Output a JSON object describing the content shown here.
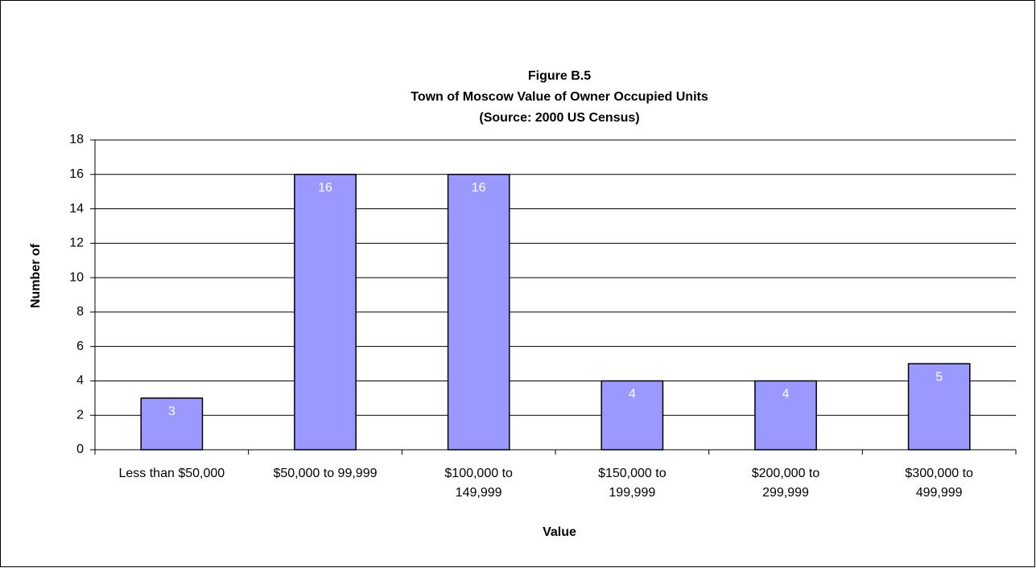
{
  "chart_data": {
    "type": "bar",
    "title": "Figure B.5",
    "subtitle": [
      "Town of Moscow Value of Owner Occupied Units",
      "(Source: 2000 US Census)"
    ],
    "x_label": "Value",
    "y_label": "Number of",
    "categories": [
      "Less than $50,000",
      "$50,000 to 99,999",
      "$100,000 to 149,999",
      "$150,000 to 199,999",
      "$200,000 to 299,999",
      "$300,000 to 499,999"
    ],
    "values": [
      3,
      16,
      16,
      4,
      4,
      5
    ],
    "color": "#9999ff",
    "ylim": [
      0,
      18
    ],
    "yticks": [
      0,
      2,
      4,
      6,
      8,
      10,
      12,
      14,
      16,
      18
    ],
    "grid": true
  }
}
